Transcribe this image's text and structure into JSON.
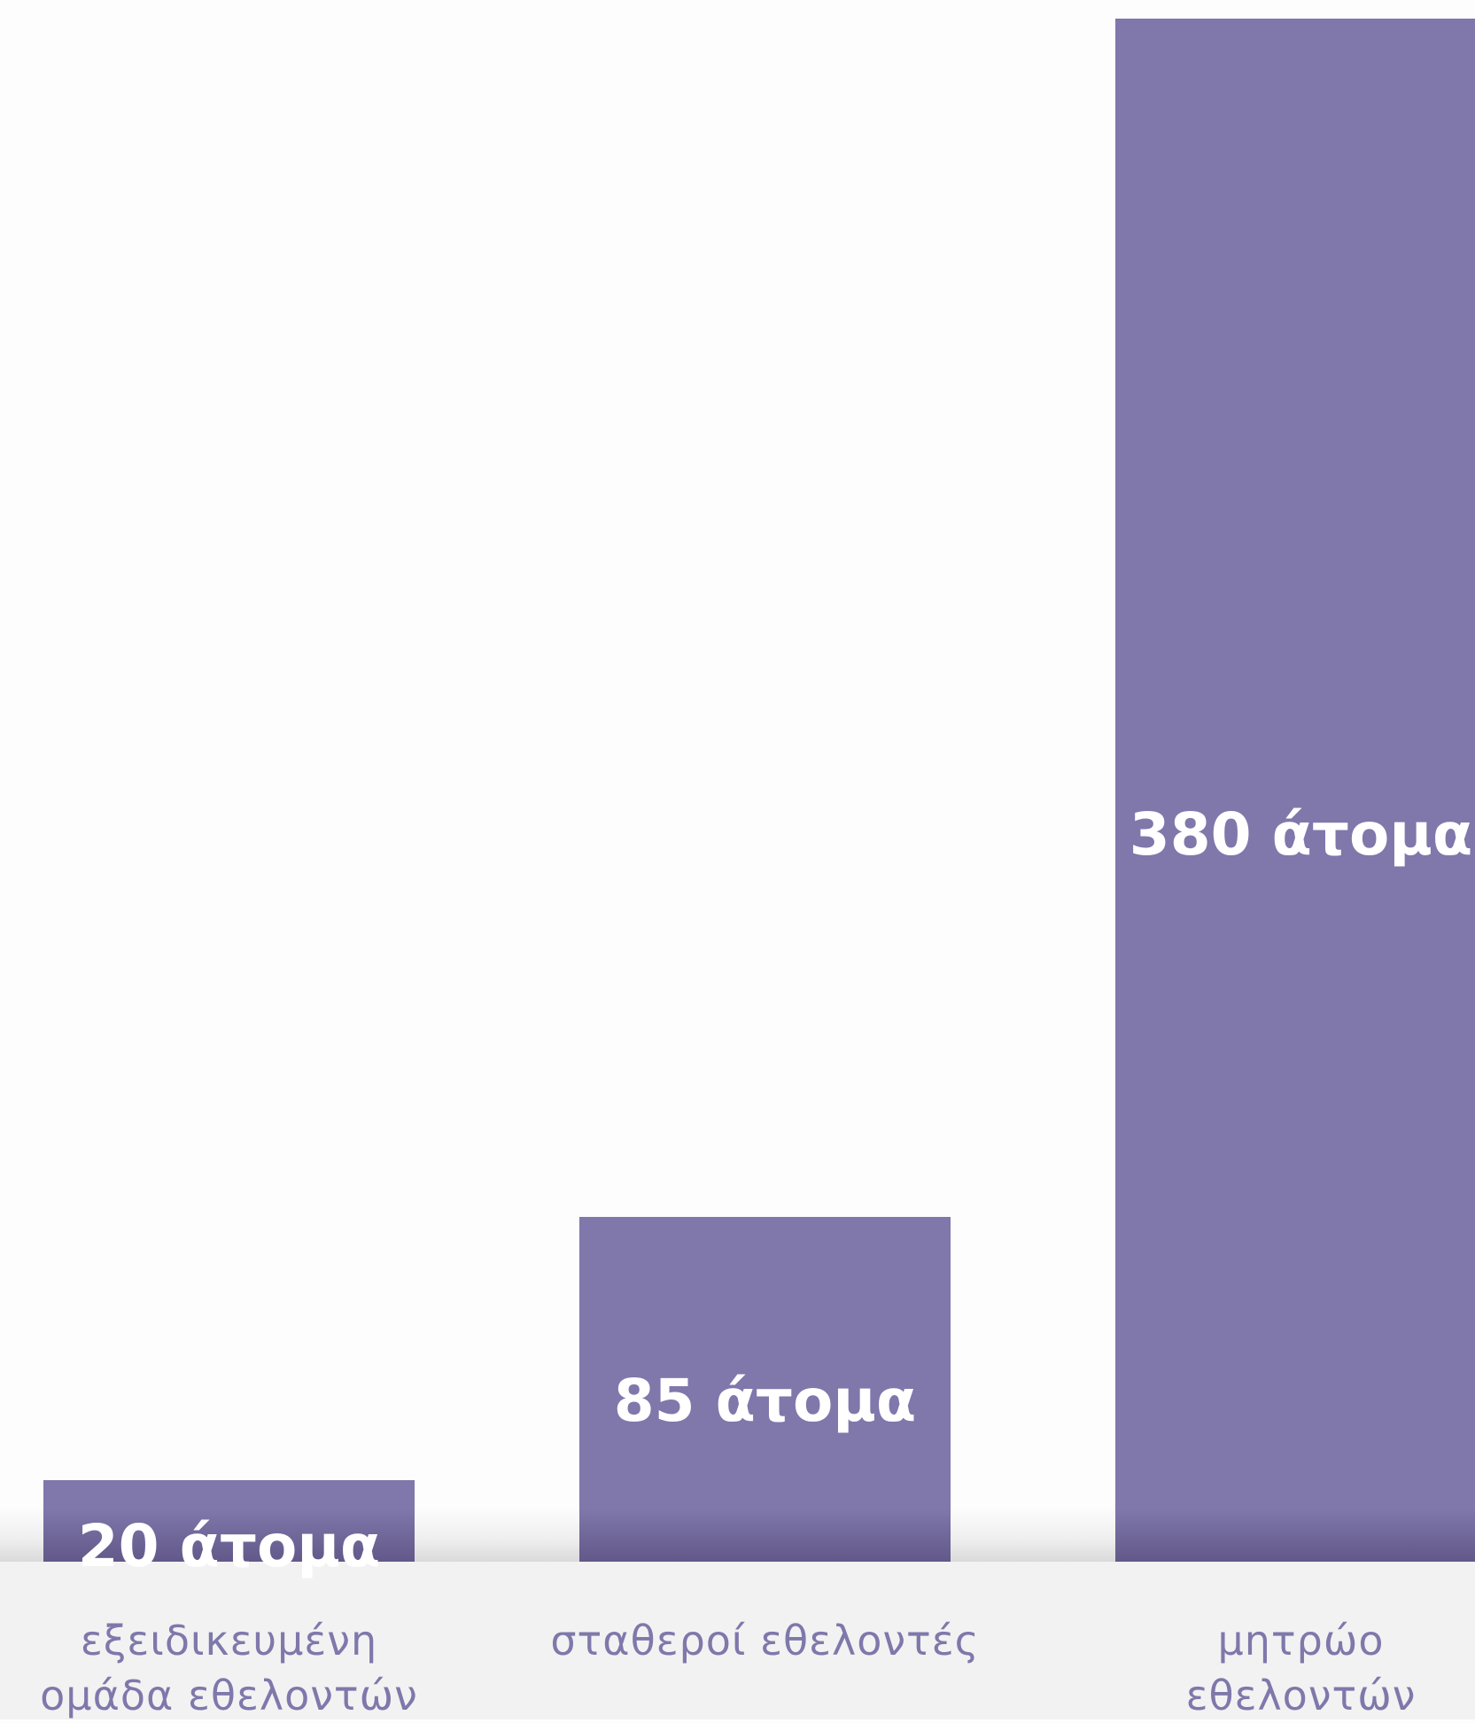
{
  "chart_data": {
    "type": "bar",
    "categories": [
      "εξειδικευμένη\nομάδα εθελοντών",
      "σταθεροί εθελοντές",
      "μητρώο εθελοντών"
    ],
    "values": [
      20,
      85,
      380
    ],
    "value_labels": [
      "20 άτομα",
      "85 άτομα",
      "380 άτομα"
    ],
    "title": "",
    "xlabel": "",
    "ylabel": "",
    "grid": false,
    "bar_color": "#8077ab",
    "label_color": "#7f78ab"
  }
}
